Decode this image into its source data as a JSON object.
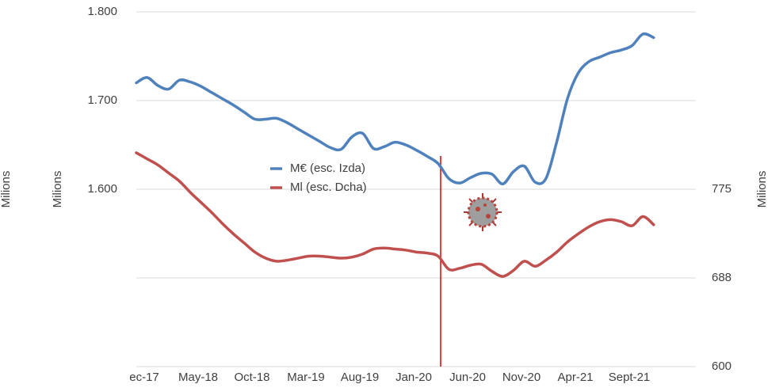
{
  "chart_data": {
    "type": "line",
    "ylabel": "Milions",
    "y2label": "Milions",
    "categories": [
      "ec-17",
      null,
      null,
      null,
      null,
      "May-18",
      null,
      null,
      null,
      null,
      "Oct-18",
      null,
      null,
      null,
      null,
      "Mar-19",
      null,
      null,
      null,
      null,
      "Aug-19",
      null,
      null,
      null,
      null,
      "Jan-20",
      null,
      null,
      null,
      null,
      "Jun-20",
      null,
      null,
      null,
      null,
      "Nov-20",
      null,
      null,
      null,
      null,
      "Apr-21",
      null,
      null,
      null,
      null,
      "Sept-21",
      null,
      null,
      null
    ],
    "series": [
      {
        "name": "M€ (esc. Izda)",
        "color": "#4f81bd",
        "axis": "y",
        "values": [
          1720,
          1726,
          1717,
          1713,
          1723,
          1721,
          1716,
          1709,
          1702,
          1695,
          1687,
          1679,
          1679,
          1680,
          1675,
          1668,
          1661,
          1654,
          1647,
          1645,
          1659,
          1663,
          1646,
          1648,
          1653,
          1650,
          1644,
          1637,
          1629,
          1612,
          1607,
          1613,
          1618,
          1617,
          1606,
          1620,
          1626,
          1608,
          1612,
          1653,
          1702,
          1731,
          1744,
          1749,
          1754,
          1757,
          1762,
          1775,
          1771
        ]
      },
      {
        "name": "Ml (esc. Dcha)",
        "color": "#c0504d",
        "axis": "y2",
        "values": [
          811,
          805,
          799,
          791,
          783,
          772,
          762,
          752,
          741,
          731,
          722,
          713,
          707,
          704,
          705,
          707,
          709,
          709,
          708,
          707,
          708,
          711,
          716,
          717,
          716,
          715,
          713,
          712,
          709,
          696,
          697,
          700,
          701,
          694,
          689,
          695,
          704,
          699,
          705,
          713,
          723,
          731,
          738,
          743,
          745,
          743,
          739,
          748,
          740
        ]
      }
    ],
    "ylim": [
      1400,
      1800
    ],
    "yticks": [
      {
        "value": 1600,
        "label": "1.600"
      },
      {
        "value": 1700,
        "label": "1.700"
      },
      {
        "value": 1800,
        "label": "1.800"
      }
    ],
    "y2lim": [
      600,
      950
    ],
    "y2ticks": [
      600,
      {
        "value": 687.5,
        "label": "688"
      },
      775
    ],
    "grid": true
  }
}
